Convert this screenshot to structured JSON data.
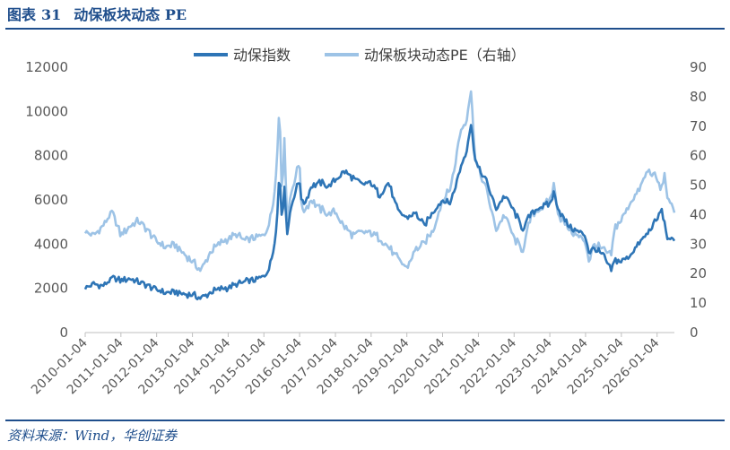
{
  "figure": {
    "label": "图表",
    "number": "31",
    "title": "动保板块动态 PE"
  },
  "source": "资料来源：Wind，华创证券",
  "colors": {
    "title": "#1f4e8c",
    "left_series": "#2e75b6",
    "right_series": "#9dc3e6",
    "axis": "#595959"
  },
  "chart_data": {
    "type": "line",
    "title": "",
    "legend_position": "top-center",
    "grid": false,
    "x_tick_labels": [
      "2010-01-04",
      "2011-01-04",
      "2012-01-04",
      "2013-01-04",
      "2014-01-04",
      "2015-01-04",
      "2016-01-04",
      "2017-01-04",
      "2018-01-04",
      "2019-01-04",
      "2020-01-04",
      "2021-01-04",
      "2022-01-04",
      "2023-01-04",
      "2024-01-04",
      "2025-01-04",
      "2026-01-04"
    ],
    "x_range": [
      "2010-01-04",
      "2026-06-30"
    ],
    "y_left": {
      "min": 0,
      "max": 12000,
      "ticks": [
        "0",
        "2000",
        "4000",
        "6000",
        "8000",
        "10000",
        "12000"
      ]
    },
    "y_right": {
      "min": 0,
      "max": 90,
      "ticks": [
        "0",
        "10",
        "20",
        "30",
        "40",
        "50",
        "60",
        "70",
        "80",
        "90"
      ]
    },
    "series": [
      {
        "name": "动保指数",
        "axis": "left",
        "points": [
          [
            "2010-01-04",
            2000
          ],
          [
            "2010-04-01",
            2200
          ],
          [
            "2010-07-01",
            2100
          ],
          [
            "2010-10-01",
            2450
          ],
          [
            "2011-01-04",
            2350
          ],
          [
            "2011-04-01",
            2450
          ],
          [
            "2011-07-01",
            2300
          ],
          [
            "2011-10-01",
            2150
          ],
          [
            "2012-01-04",
            1950
          ],
          [
            "2012-04-01",
            1800
          ],
          [
            "2012-07-01",
            1850
          ],
          [
            "2012-10-01",
            1750
          ],
          [
            "2013-01-04",
            1700
          ],
          [
            "2013-04-01",
            1550
          ],
          [
            "2013-07-01",
            1800
          ],
          [
            "2013-10-01",
            1950
          ],
          [
            "2014-01-04",
            2050
          ],
          [
            "2014-04-01",
            2150
          ],
          [
            "2014-07-01",
            2300
          ],
          [
            "2014-10-01",
            2350
          ],
          [
            "2015-01-04",
            2550
          ],
          [
            "2015-03-01",
            2900
          ],
          [
            "2015-04-15",
            3800
          ],
          [
            "2015-05-20",
            5200
          ],
          [
            "2015-06-12",
            7400
          ],
          [
            "2015-07-08",
            5000
          ],
          [
            "2015-08-01",
            6800
          ],
          [
            "2015-08-26",
            4400
          ],
          [
            "2015-10-01",
            5500
          ],
          [
            "2015-11-15",
            6300
          ],
          [
            "2016-01-04",
            6900
          ],
          [
            "2016-01-28",
            5800
          ],
          [
            "2016-03-01",
            5900
          ],
          [
            "2016-05-01",
            6600
          ],
          [
            "2016-08-01",
            6800
          ],
          [
            "2016-11-01",
            6600
          ],
          [
            "2017-01-04",
            6900
          ],
          [
            "2017-04-01",
            7300
          ],
          [
            "2017-07-01",
            7000
          ],
          [
            "2017-10-01",
            6700
          ],
          [
            "2018-01-04",
            6800
          ],
          [
            "2018-04-01",
            6200
          ],
          [
            "2018-07-01",
            6800
          ],
          [
            "2018-10-01",
            5500
          ],
          [
            "2019-01-04",
            5200
          ],
          [
            "2019-04-01",
            5400
          ],
          [
            "2019-07-01",
            4800
          ],
          [
            "2019-10-01",
            5500
          ],
          [
            "2020-01-04",
            6000
          ],
          [
            "2020-03-15",
            5800
          ],
          [
            "2020-05-01",
            6400
          ],
          [
            "2020-07-01",
            7400
          ],
          [
            "2020-09-01",
            8200
          ],
          [
            "2020-10-20",
            9400
          ],
          [
            "2020-12-01",
            7900
          ],
          [
            "2021-01-04",
            7400
          ],
          [
            "2021-04-01",
            6800
          ],
          [
            "2021-07-01",
            5600
          ],
          [
            "2021-10-01",
            6200
          ],
          [
            "2022-01-04",
            5500
          ],
          [
            "2022-04-01",
            4700
          ],
          [
            "2022-07-01",
            5400
          ],
          [
            "2022-10-01",
            5700
          ],
          [
            "2023-01-04",
            5800
          ],
          [
            "2023-02-15",
            6300
          ],
          [
            "2023-04-01",
            5600
          ],
          [
            "2023-07-01",
            4900
          ],
          [
            "2023-10-01",
            4600
          ],
          [
            "2024-01-04",
            4400
          ],
          [
            "2024-02-08",
            3600
          ],
          [
            "2024-04-01",
            3800
          ],
          [
            "2024-07-01",
            3500
          ],
          [
            "2024-09-20",
            2800
          ],
          [
            "2024-11-01",
            3300
          ],
          [
            "2025-01-04",
            3200
          ],
          [
            "2025-04-01",
            3500
          ],
          [
            "2025-07-01",
            4000
          ],
          [
            "2025-10-01",
            4500
          ],
          [
            "2026-01-04",
            5100
          ],
          [
            "2026-02-15",
            5600
          ],
          [
            "2026-03-20",
            5000
          ],
          [
            "2026-05-01",
            4100
          ],
          [
            "2026-06-30",
            4300
          ]
        ]
      },
      {
        "name": "动保板块动态PE（右轴）",
        "axis": "right",
        "points": [
          [
            "2010-01-04",
            34
          ],
          [
            "2010-04-01",
            33
          ],
          [
            "2010-07-01",
            36
          ],
          [
            "2010-10-01",
            41
          ],
          [
            "2011-01-04",
            33
          ],
          [
            "2011-04-01",
            36
          ],
          [
            "2011-07-01",
            38
          ],
          [
            "2011-10-01",
            35
          ],
          [
            "2012-01-04",
            31
          ],
          [
            "2012-04-01",
            29
          ],
          [
            "2012-07-01",
            30
          ],
          [
            "2012-10-01",
            27
          ],
          [
            "2013-01-04",
            24
          ],
          [
            "2013-04-01",
            21
          ],
          [
            "2013-07-01",
            27
          ],
          [
            "2013-10-01",
            30
          ],
          [
            "2014-01-04",
            32
          ],
          [
            "2014-04-01",
            33
          ],
          [
            "2014-07-01",
            31
          ],
          [
            "2014-10-01",
            32
          ],
          [
            "2015-01-04",
            33
          ],
          [
            "2015-03-01",
            37
          ],
          [
            "2015-04-15",
            45
          ],
          [
            "2015-05-20",
            60
          ],
          [
            "2015-06-12",
            78
          ],
          [
            "2015-07-08",
            45
          ],
          [
            "2015-08-01",
            68
          ],
          [
            "2015-08-26",
            38
          ],
          [
            "2015-10-01",
            46
          ],
          [
            "2015-11-15",
            52
          ],
          [
            "2016-01-04",
            58
          ],
          [
            "2016-01-28",
            40
          ],
          [
            "2016-03-01",
            42
          ],
          [
            "2016-05-01",
            45
          ],
          [
            "2016-08-01",
            42
          ],
          [
            "2016-11-01",
            40
          ],
          [
            "2017-01-04",
            41
          ],
          [
            "2017-04-01",
            36
          ],
          [
            "2017-07-01",
            33
          ],
          [
            "2017-10-01",
            34
          ],
          [
            "2018-01-04",
            34
          ],
          [
            "2018-04-01",
            32
          ],
          [
            "2018-07-01",
            29
          ],
          [
            "2018-10-01",
            25
          ],
          [
            "2019-01-04",
            22
          ],
          [
            "2019-04-01",
            28
          ],
          [
            "2019-07-01",
            30
          ],
          [
            "2019-10-01",
            35
          ],
          [
            "2020-01-04",
            45
          ],
          [
            "2020-03-15",
            48
          ],
          [
            "2020-05-01",
            55
          ],
          [
            "2020-07-01",
            68
          ],
          [
            "2020-09-01",
            72
          ],
          [
            "2020-10-20",
            82
          ],
          [
            "2020-12-01",
            60
          ],
          [
            "2021-01-04",
            55
          ],
          [
            "2021-04-01",
            48
          ],
          [
            "2021-07-01",
            35
          ],
          [
            "2021-10-01",
            40
          ],
          [
            "2022-01-04",
            32
          ],
          [
            "2022-04-01",
            28
          ],
          [
            "2022-07-01",
            40
          ],
          [
            "2022-10-01",
            42
          ],
          [
            "2023-01-04",
            45
          ],
          [
            "2023-02-15",
            50
          ],
          [
            "2023-04-01",
            40
          ],
          [
            "2023-07-01",
            36
          ],
          [
            "2023-10-01",
            33
          ],
          [
            "2024-01-04",
            31
          ],
          [
            "2024-02-08",
            24
          ],
          [
            "2024-04-01",
            30
          ],
          [
            "2024-07-01",
            28
          ],
          [
            "2024-09-20",
            26
          ],
          [
            "2024-11-01",
            36
          ],
          [
            "2025-01-04",
            38
          ],
          [
            "2025-04-01",
            44
          ],
          [
            "2025-07-01",
            48
          ],
          [
            "2025-10-01",
            55
          ],
          [
            "2026-01-04",
            52
          ],
          [
            "2026-02-15",
            48
          ],
          [
            "2026-03-20",
            54
          ],
          [
            "2026-05-01",
            44
          ],
          [
            "2026-06-30",
            42
          ]
        ]
      }
    ]
  }
}
